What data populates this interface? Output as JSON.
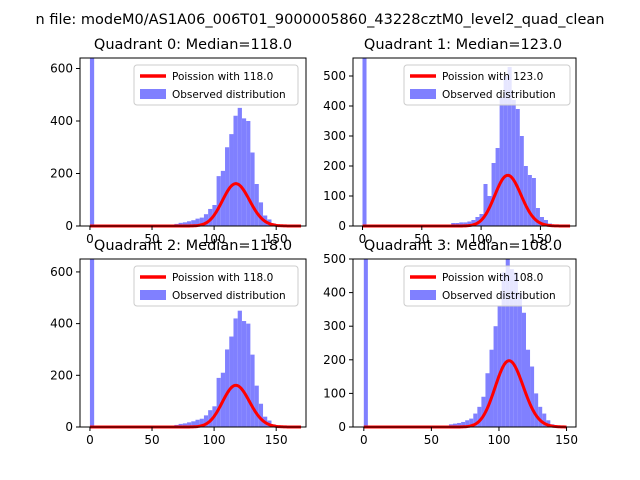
{
  "suptitle": "n file: modeM0/AS1A06_006T01_9000005860_43228cztM0_level2_quad_clean",
  "colors": {
    "poisson": "#ff0000",
    "observed": "#8080ff",
    "axes": "#000000"
  },
  "chart_data": [
    {
      "type": "bar",
      "title": "Quadrant 0: Median=118.0",
      "median": 118.0,
      "xlim": [
        -8,
        174
      ],
      "ylim": [
        0,
        640
      ],
      "xticks": [
        0,
        50,
        100,
        150
      ],
      "yticks": [
        0,
        200,
        400,
        600
      ],
      "legend": [
        "Poission with 118.0",
        "Observed distribution"
      ],
      "legend_position": "upper right",
      "observed": {
        "bin_width": 3.4,
        "bins": [
          [
            0,
            660
          ],
          [
            3.4,
            3
          ],
          [
            6.8,
            3
          ],
          [
            10.2,
            3
          ],
          [
            13.6,
            3
          ],
          [
            17,
            3
          ],
          [
            20.4,
            3
          ],
          [
            23.8,
            3
          ],
          [
            27.2,
            3
          ],
          [
            30.6,
            3
          ],
          [
            34,
            3
          ],
          [
            37.4,
            3
          ],
          [
            40.8,
            3
          ],
          [
            44.2,
            3
          ],
          [
            47.6,
            3
          ],
          [
            51,
            3
          ],
          [
            54.4,
            3
          ],
          [
            57.8,
            3
          ],
          [
            61.2,
            3
          ],
          [
            64.6,
            3
          ],
          [
            68,
            8
          ],
          [
            71.4,
            12
          ],
          [
            74.8,
            14
          ],
          [
            78.2,
            18
          ],
          [
            81.6,
            22
          ],
          [
            85,
            28
          ],
          [
            88.4,
            32
          ],
          [
            91.8,
            45
          ],
          [
            95.2,
            65
          ],
          [
            98.6,
            80
          ],
          [
            102,
            190
          ],
          [
            105.4,
            210
          ],
          [
            108.8,
            300
          ],
          [
            112.2,
            350
          ],
          [
            115.6,
            420
          ],
          [
            119,
            450
          ],
          [
            122.4,
            410
          ],
          [
            125.8,
            400
          ],
          [
            129.2,
            280
          ],
          [
            132.6,
            160
          ],
          [
            136,
            90
          ],
          [
            139.4,
            40
          ],
          [
            142.8,
            25
          ],
          [
            146.2,
            10
          ],
          [
            149.6,
            5
          ],
          [
            153,
            3
          ],
          [
            156.4,
            3
          ],
          [
            159.8,
            3
          ],
          [
            163.2,
            3
          ]
        ]
      },
      "poisson": {
        "mean": 118.0,
        "x_range": [
          0,
          170
        ]
      }
    },
    {
      "type": "bar",
      "title": "Quadrant 1: Median=123.0",
      "median": 123.0,
      "xlim": [
        -8,
        180
      ],
      "ylim": [
        0,
        560
      ],
      "xticks": [
        0,
        50,
        100,
        150
      ],
      "yticks": [
        0,
        100,
        200,
        300,
        400,
        500
      ],
      "legend": [
        "Poission with 123.0",
        "Observed distribution"
      ],
      "legend_position": "upper right",
      "observed": {
        "bin_width": 3.4,
        "bins": [
          [
            0,
            570
          ],
          [
            3.4,
            2
          ],
          [
            6.8,
            2
          ],
          [
            10.2,
            2
          ],
          [
            13.6,
            2
          ],
          [
            17,
            2
          ],
          [
            20.4,
            2
          ],
          [
            23.8,
            2
          ],
          [
            27.2,
            2
          ],
          [
            30.6,
            2
          ],
          [
            34,
            2
          ],
          [
            37.4,
            2
          ],
          [
            40.8,
            2
          ],
          [
            44.2,
            2
          ],
          [
            47.6,
            2
          ],
          [
            51,
            2
          ],
          [
            54.4,
            2
          ],
          [
            57.8,
            2
          ],
          [
            61.2,
            2
          ],
          [
            64.6,
            2
          ],
          [
            68,
            2
          ],
          [
            71.4,
            2
          ],
          [
            74.8,
            10
          ],
          [
            78.2,
            10
          ],
          [
            81.6,
            12
          ],
          [
            85,
            12
          ],
          [
            88.4,
            15
          ],
          [
            91.8,
            20
          ],
          [
            95.2,
            30
          ],
          [
            98.6,
            40
          ],
          [
            102,
            140
          ],
          [
            105.4,
            100
          ],
          [
            108.8,
            210
          ],
          [
            112.2,
            260
          ],
          [
            115.6,
            430
          ],
          [
            119,
            500
          ],
          [
            122.4,
            530
          ],
          [
            125.8,
            420
          ],
          [
            129.2,
            390
          ],
          [
            132.6,
            300
          ],
          [
            136,
            200
          ],
          [
            139.4,
            170
          ],
          [
            142.8,
            160
          ],
          [
            146.2,
            60
          ],
          [
            149.6,
            30
          ],
          [
            153,
            20
          ],
          [
            156.4,
            8
          ],
          [
            159.8,
            3
          ],
          [
            163.2,
            3
          ],
          [
            166.6,
            2
          ],
          [
            170,
            2
          ]
        ]
      },
      "poisson": {
        "mean": 123.0,
        "x_range": [
          0,
          175
        ]
      }
    },
    {
      "type": "bar",
      "title": "Quadrant 2: Median=118.0",
      "median": 118.0,
      "xlim": [
        -8,
        174
      ],
      "ylim": [
        0,
        650
      ],
      "xticks": [
        0,
        50,
        100,
        150
      ],
      "yticks": [
        0,
        200,
        400,
        600
      ],
      "legend": [
        "Poission with 118.0",
        "Observed distribution"
      ],
      "legend_position": "upper right",
      "observed": {
        "bin_width": 3.4,
        "bins": [
          [
            0,
            660
          ],
          [
            3.4,
            3
          ],
          [
            6.8,
            3
          ],
          [
            10.2,
            3
          ],
          [
            13.6,
            3
          ],
          [
            17,
            3
          ],
          [
            20.4,
            3
          ],
          [
            23.8,
            3
          ],
          [
            27.2,
            3
          ],
          [
            30.6,
            3
          ],
          [
            34,
            3
          ],
          [
            37.4,
            3
          ],
          [
            40.8,
            3
          ],
          [
            44.2,
            3
          ],
          [
            47.6,
            3
          ],
          [
            51,
            3
          ],
          [
            54.4,
            3
          ],
          [
            57.8,
            3
          ],
          [
            61.2,
            3
          ],
          [
            64.6,
            3
          ],
          [
            68,
            8
          ],
          [
            71.4,
            12
          ],
          [
            74.8,
            14
          ],
          [
            78.2,
            18
          ],
          [
            81.6,
            22
          ],
          [
            85,
            28
          ],
          [
            88.4,
            32
          ],
          [
            91.8,
            45
          ],
          [
            95.2,
            65
          ],
          [
            98.6,
            80
          ],
          [
            102,
            190
          ],
          [
            105.4,
            210
          ],
          [
            108.8,
            300
          ],
          [
            112.2,
            350
          ],
          [
            115.6,
            420
          ],
          [
            119,
            450
          ],
          [
            122.4,
            410
          ],
          [
            125.8,
            400
          ],
          [
            129.2,
            280
          ],
          [
            132.6,
            160
          ],
          [
            136,
            90
          ],
          [
            139.4,
            40
          ],
          [
            142.8,
            25
          ],
          [
            146.2,
            10
          ],
          [
            149.6,
            5
          ],
          [
            153,
            3
          ],
          [
            156.4,
            3
          ],
          [
            159.8,
            3
          ],
          [
            163.2,
            3
          ]
        ]
      },
      "poisson": {
        "mean": 118.0,
        "x_range": [
          0,
          170
        ]
      }
    },
    {
      "type": "bar",
      "title": "Quadrant 3: Median=108.0",
      "median": 108.0,
      "xlim": [
        -8,
        157
      ],
      "ylim": [
        0,
        500
      ],
      "xticks": [
        0,
        50,
        100,
        150
      ],
      "yticks": [
        0,
        100,
        200,
        300,
        400,
        500
      ],
      "legend": [
        "Poission with 108.0",
        "Observed distribution"
      ],
      "legend_position": "upper right",
      "observed": {
        "bin_width": 3.0,
        "bins": [
          [
            0,
            500
          ],
          [
            3,
            2
          ],
          [
            6,
            2
          ],
          [
            9,
            2
          ],
          [
            12,
            2
          ],
          [
            15,
            2
          ],
          [
            18,
            2
          ],
          [
            21,
            2
          ],
          [
            24,
            2
          ],
          [
            27,
            2
          ],
          [
            30,
            2
          ],
          [
            33,
            2
          ],
          [
            36,
            2
          ],
          [
            39,
            2
          ],
          [
            42,
            2
          ],
          [
            45,
            2
          ],
          [
            48,
            2
          ],
          [
            51,
            2
          ],
          [
            54,
            2
          ],
          [
            57,
            2
          ],
          [
            60,
            2
          ],
          [
            63,
            8
          ],
          [
            66,
            10
          ],
          [
            69,
            12
          ],
          [
            72,
            15
          ],
          [
            75,
            20
          ],
          [
            78,
            25
          ],
          [
            81,
            40
          ],
          [
            84,
            60
          ],
          [
            87,
            90
          ],
          [
            90,
            160
          ],
          [
            93,
            230
          ],
          [
            96,
            300
          ],
          [
            99,
            360
          ],
          [
            102,
            460
          ],
          [
            105,
            500
          ],
          [
            108,
            470
          ],
          [
            111,
            460
          ],
          [
            114,
            400
          ],
          [
            117,
            340
          ],
          [
            120,
            230
          ],
          [
            123,
            180
          ],
          [
            126,
            100
          ],
          [
            129,
            60
          ],
          [
            132,
            40
          ],
          [
            135,
            20
          ],
          [
            138,
            8
          ],
          [
            141,
            3
          ],
          [
            144,
            2
          ]
        ]
      },
      "poisson": {
        "mean": 108.0,
        "x_range": [
          0,
          150
        ]
      }
    }
  ]
}
